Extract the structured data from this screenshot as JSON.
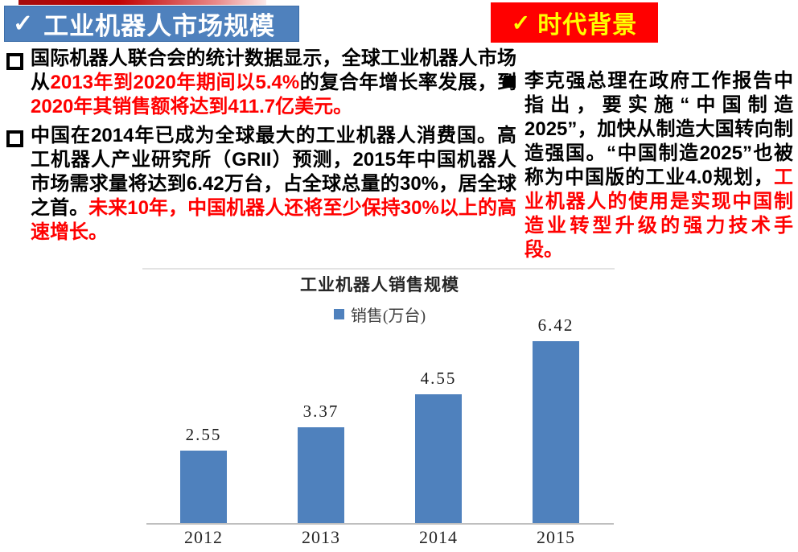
{
  "headers": {
    "left": {
      "check": "✓",
      "label": "工业机器人市场规模"
    },
    "right": {
      "check": "✓",
      "label": "时代背景"
    }
  },
  "left_column": {
    "bullets": [
      {
        "segments": [
          {
            "t": "国际机器人联合会的统计数据显示，全球工业机器人市场从",
            "c": "black"
          },
          {
            "t": "2013年到2020年期间以5.4%",
            "c": "red"
          },
          {
            "t": "的复合年增长率发展，到",
            "c": "black"
          },
          {
            "t": "2020年其销售额将达到411.7亿美元。",
            "c": "red"
          }
        ]
      },
      {
        "segments": [
          {
            "t": "中国在2014年已成为全球最大的工业机器人消费国。高工机器人产业研究所（GRII）预测，2015年中国机器人市场需求量将达到6.42万台，占全球总量的30%，居全球之首。",
            "c": "black"
          },
          {
            "t": "未来10年，中国机器人还将至少保持30%以上的高速增长。",
            "c": "red"
          }
        ]
      }
    ]
  },
  "right_column": {
    "bullets": [
      {
        "segments": [
          {
            "t": "李克强总理在政府工作报告中指出，要实施“中国制造2025”，加快从制造大国转向制造强国。“中国制造2025”也被称为中国版的工业4.0规划，",
            "c": "black"
          },
          {
            "t": "工业机器人的使用是实现中国制造业转型升级的强力技术手段。",
            "c": "red"
          }
        ]
      }
    ]
  },
  "chart_data": {
    "type": "bar",
    "title": "工业机器人销售规模",
    "legend": [
      {
        "label": "销售(万台)",
        "color": "#4f81bd"
      }
    ],
    "legend_position": "top",
    "categories": [
      "2012",
      "2013",
      "2014",
      "2015"
    ],
    "values": [
      2.55,
      3.37,
      4.55,
      6.42
    ],
    "value_labels": [
      "2.55",
      "3.37",
      "4.55",
      "6.42"
    ],
    "xlabel": "",
    "ylabel": "",
    "ylim": [
      0,
      7
    ],
    "grid": false,
    "bar_color": "#4f81bd",
    "axis_color": "#bfbfbf"
  },
  "colors": {
    "accent_blue": "#4f81bd",
    "highlight_red": "#ff0000",
    "header_right_bg": "#ff0000",
    "header_right_text": "#ffff00",
    "top_strip_red": "#c00000"
  }
}
